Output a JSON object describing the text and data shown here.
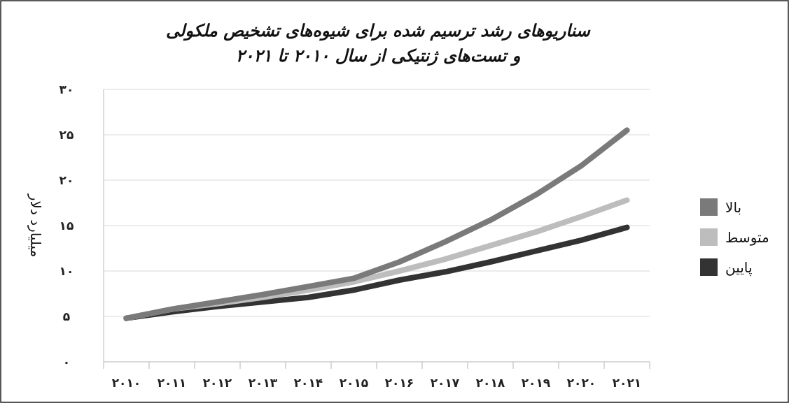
{
  "chart_data": {
    "type": "line",
    "title": "سناریوهای رشد ترسیم شده برای شیوه‌های تشخیص ملکولی\nو تست‌های ژنتیکی از سال ۲۰۱۰ تا ۲۰۲۱",
    "ylabel": "میلیارد دلار",
    "categories": [
      "۲۰۱۰",
      "۲۰۱۱",
      "۲۰۱۲",
      "۲۰۱۳",
      "۲۰۱۴",
      "۲۰۱۵",
      "۲۰۱۶",
      "۲۰۱۷",
      "۲۰۱۸",
      "۲۰۱۹",
      "۲۰۲۰",
      "۲۰۲۱"
    ],
    "series": [
      {
        "name": "بالا",
        "color": "#7a7a7a",
        "values": [
          4.8,
          5.8,
          6.6,
          7.4,
          8.3,
          9.2,
          11.0,
          13.2,
          15.6,
          18.4,
          21.6,
          25.5
        ]
      },
      {
        "name": "متوسط",
        "color": "#bdbdbd",
        "values": [
          4.8,
          5.8,
          6.4,
          7.1,
          7.9,
          8.8,
          10.0,
          11.3,
          12.8,
          14.3,
          16.0,
          17.8
        ]
      },
      {
        "name": "پایین",
        "color": "#333333",
        "values": [
          4.8,
          5.5,
          6.1,
          6.6,
          7.1,
          7.9,
          9.0,
          9.9,
          11.0,
          12.2,
          13.4,
          14.8
        ]
      }
    ],
    "ylim": [
      0,
      30
    ],
    "yticks": [
      {
        "value": 0,
        "label": "۰"
      },
      {
        "value": 5,
        "label": "۵"
      },
      {
        "value": 10,
        "label": "۱۰"
      },
      {
        "value": 15,
        "label": "۱۵"
      },
      {
        "value": 20,
        "label": "۲۰"
      },
      {
        "value": 25,
        "label": "۲۵"
      },
      {
        "value": 30,
        "label": "۳۰"
      }
    ],
    "grid": "y",
    "legend": "right",
    "marker": "none",
    "line_style": "solid"
  }
}
